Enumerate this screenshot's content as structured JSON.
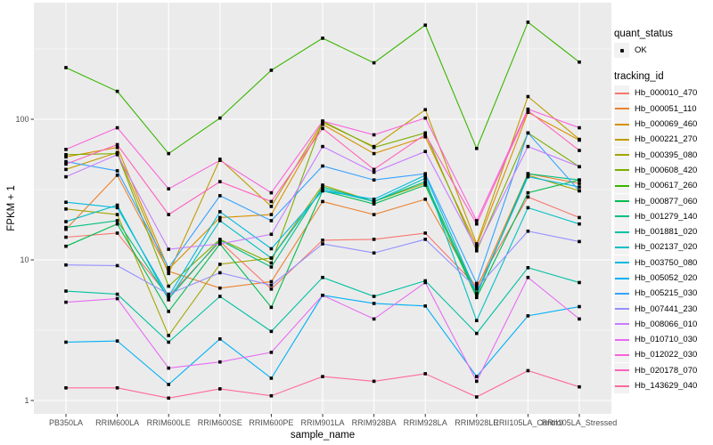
{
  "chart_data": {
    "type": "line",
    "title": "",
    "xlabel": "sample_name",
    "ylabel": "FPKM + 1",
    "y_scale": "log10",
    "y_ticks": [
      1,
      10,
      100
    ],
    "ylim": [
      1,
      500
    ],
    "grid": true,
    "panel_bg": "#EBEBEB",
    "grid_color": "#FFFFFF",
    "point_color": "#000000",
    "categories": [
      "PB350LA",
      "RRIM600LA",
      "RRIM600LE",
      "RRIM600SE",
      "RRIM600PE",
      "RRIM901LA",
      "RRIM928BA",
      "RRIM928LA",
      "RRIM928LE",
      "RRII105LA_Control",
      "RRII105LA_Stressed"
    ],
    "series": [
      {
        "name": "Hb_000010_470",
        "color": "#F8766D",
        "values": [
          14.5,
          15.5,
          5.5,
          13.5,
          6.2,
          13.8,
          14,
          15.5,
          6.5,
          28,
          20
        ]
      },
      {
        "name": "Hb_000051_110",
        "color": "#EA8331",
        "values": [
          16.5,
          40,
          8.3,
          6.3,
          7.0,
          26,
          21,
          27,
          6.2,
          41,
          35
        ]
      },
      {
        "name": "Hb_000069_460",
        "color": "#D89000",
        "values": [
          54,
          63,
          8.6,
          20,
          21,
          92,
          57,
          75,
          12.5,
          112,
          71
        ]
      },
      {
        "name": "Hb_000221_270",
        "color": "#C09B00",
        "values": [
          44,
          58,
          8.0,
          52,
          24,
          95,
          64,
          117,
          13,
          145,
          72
        ]
      },
      {
        "name": "Hb_000395_080",
        "color": "#A3A500",
        "values": [
          23,
          21,
          2.9,
          9.3,
          10.3,
          34,
          26,
          35,
          5.8,
          40,
          31
        ]
      },
      {
        "name": "Hb_000608_420",
        "color": "#7CAE00",
        "values": [
          56,
          57,
          6.5,
          14,
          9.5,
          97,
          63,
          80,
          11.6,
          80,
          46
        ]
      },
      {
        "name": "Hb_000617_260",
        "color": "#39B600",
        "values": [
          233,
          158,
          57,
          102,
          223,
          377,
          252,
          467,
          62,
          490,
          255
        ]
      },
      {
        "name": "Hb_000877_060",
        "color": "#00BB4E",
        "values": [
          12.5,
          18,
          4.3,
          13,
          4.6,
          31,
          25,
          34,
          5.4,
          30,
          37
        ]
      },
      {
        "name": "Hb_001279_140",
        "color": "#00BF7D",
        "values": [
          17,
          19,
          5.3,
          13.8,
          8.9,
          33,
          26,
          36,
          5.6,
          41,
          37
        ]
      },
      {
        "name": "Hb_001881_020",
        "color": "#00C1A3",
        "values": [
          6.0,
          5.7,
          2.6,
          5.5,
          3.1,
          7.5,
          5.5,
          7.1,
          3.0,
          8.8,
          6.9
        ]
      },
      {
        "name": "Hb_002137_020",
        "color": "#00BFC4",
        "values": [
          18.7,
          24.5,
          5.2,
          19,
          10.3,
          32,
          26,
          38,
          3.7,
          23.5,
          18
        ]
      },
      {
        "name": "Hb_003750_080",
        "color": "#00BAE0",
        "values": [
          25.7,
          23.5,
          5.5,
          22,
          12,
          31,
          27,
          40,
          5.8,
          39,
          33
        ]
      },
      {
        "name": "Hb_005052_020",
        "color": "#00B0F6",
        "values": [
          2.6,
          2.65,
          1.3,
          2.74,
          1.44,
          5.6,
          4.9,
          4.7,
          1.48,
          4.0,
          4.65
        ]
      },
      {
        "name": "Hb_005215_030",
        "color": "#35A2FF",
        "values": [
          50,
          43,
          8.8,
          28.6,
          19,
          46.5,
          37,
          41,
          6.8,
          80,
          31
        ]
      },
      {
        "name": "Hb_007441_230",
        "color": "#9590FF",
        "values": [
          9.2,
          9.1,
          5.7,
          8.1,
          6.6,
          13.0,
          11.2,
          14.0,
          6.3,
          16,
          13.5
        ]
      },
      {
        "name": "Hb_008066_010",
        "color": "#C77CFF",
        "values": [
          39,
          56,
          11.9,
          13,
          15.2,
          64,
          42,
          59,
          12,
          64,
          46
        ]
      },
      {
        "name": "Hb_010710_030",
        "color": "#E76BF3",
        "values": [
          5.0,
          5.3,
          1.7,
          1.88,
          2.2,
          5.6,
          3.8,
          6.9,
          1.37,
          7.5,
          3.8
        ]
      },
      {
        "name": "Hb_012022_030",
        "color": "#FA62DB",
        "values": [
          61,
          87,
          32,
          51,
          30,
          97,
          77.5,
          102,
          19,
          118,
          87
        ]
      },
      {
        "name": "Hb_020178_070",
        "color": "#FF62BC",
        "values": [
          48,
          66,
          21,
          36,
          26,
          86,
          44,
          78,
          18,
          115,
          60
        ]
      },
      {
        "name": "Hb_143629_040",
        "color": "#FF6A98",
        "values": [
          1.23,
          1.23,
          1.04,
          1.21,
          1.08,
          1.48,
          1.37,
          1.55,
          1.06,
          1.63,
          1.25
        ]
      }
    ]
  },
  "legend": {
    "quant_status": {
      "title": "quant_status",
      "items": [
        {
          "label": "OK",
          "icon": "black-point"
        }
      ]
    },
    "tracking_id": {
      "title": "tracking_id"
    }
  }
}
